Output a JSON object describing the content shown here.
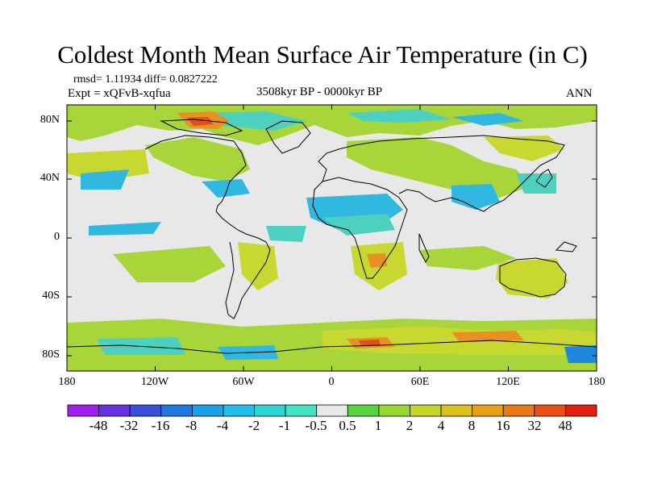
{
  "title": "Coldest Month Mean Surface Air Temperature (in C)",
  "stats": "rmsd= 1.11934 diff= 0.0827222",
  "experiment": "Expt = xQFvB-xqfua",
  "period": "3508kyr BP - 0000kyr BP",
  "season": "ANN",
  "y_ticks": [
    "80N",
    "40N",
    "0",
    "40S",
    "80S"
  ],
  "x_ticks": [
    "180",
    "120W",
    "60W",
    "0",
    "60E",
    "120E",
    "180"
  ],
  "colorbar": {
    "labels": [
      "-48",
      "-32",
      "-16",
      "-8",
      "-4",
      "-2",
      "-1",
      "-0.5",
      "0.5",
      "1",
      "2",
      "4",
      "8",
      "16",
      "32",
      "48"
    ],
    "colors": [
      "#a020f0",
      "#6a2fe0",
      "#3a4fd8",
      "#1e78e0",
      "#1ea0e8",
      "#22c0e8",
      "#2ed6d6",
      "#40e4c0",
      "#e8e8e8",
      "#58d440",
      "#96d832",
      "#c4d628",
      "#dcc020",
      "#e8a018",
      "#e87818",
      "#e85018",
      "#e02010"
    ]
  },
  "map_colors": {
    "background": "#e8e8e8",
    "light_green": "#a8d63a",
    "yellow_green": "#c8d830",
    "teal": "#4cd0c0",
    "light_blue": "#30b8e0",
    "blue": "#1e88e0",
    "orange": "#e89020",
    "red_orange": "#e05018",
    "coastline": "#000000"
  }
}
